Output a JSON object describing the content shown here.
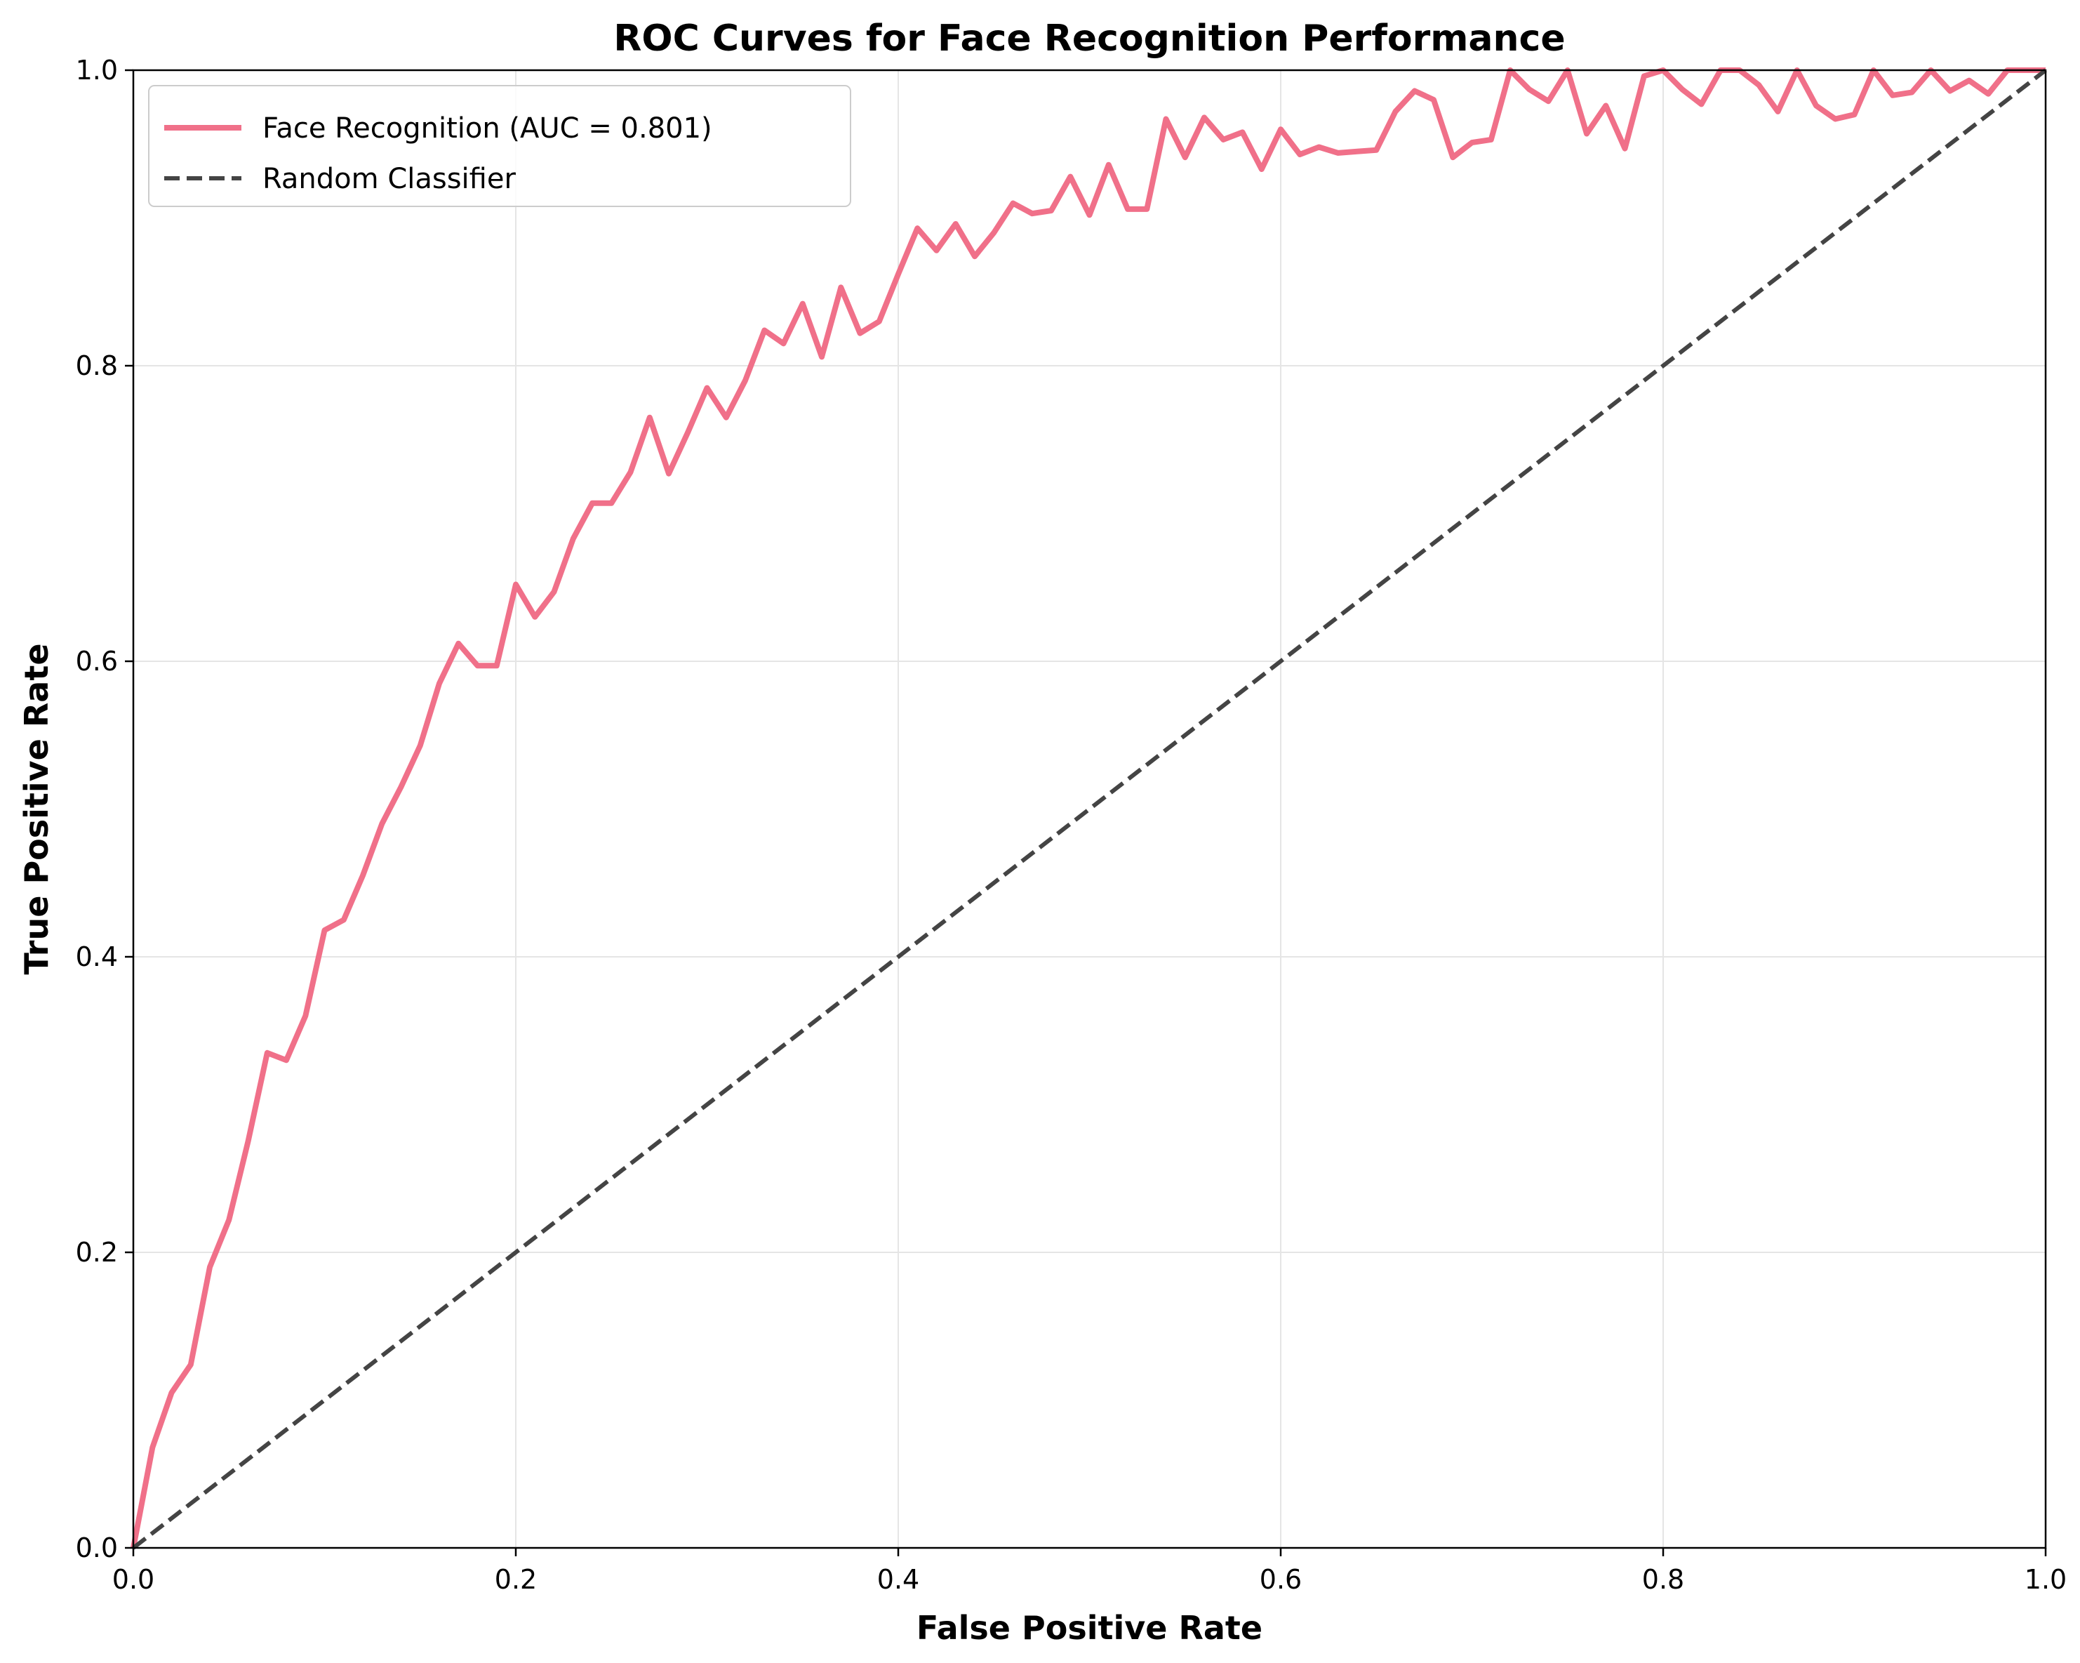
{
  "chart_data": {
    "type": "line",
    "title": "ROC Curves for Face Recognition Performance",
    "xlabel": "False Positive Rate",
    "ylabel": "True Positive Rate",
    "xlim": [
      0,
      1
    ],
    "ylim": [
      0,
      1
    ],
    "grid": true,
    "legend_position": "top-left",
    "x_ticks": [
      "0.0",
      "0.2",
      "0.4",
      "0.6",
      "0.8",
      "1.0"
    ],
    "y_ticks": [
      "0.0",
      "0.2",
      "0.4",
      "0.6",
      "0.8",
      "1.0"
    ],
    "colors": {
      "roc": "#f07089",
      "random": "#444444",
      "grid": "#e5e5e5"
    },
    "series": [
      {
        "name": "Face Recognition (AUC = 0.801)",
        "style": "solid",
        "x": [
          0.0,
          0.01,
          0.02,
          0.03,
          0.04,
          0.05,
          0.06,
          0.07,
          0.08,
          0.09,
          0.1,
          0.11,
          0.12,
          0.13,
          0.14,
          0.15,
          0.16,
          0.17,
          0.18,
          0.19,
          0.2,
          0.21,
          0.22,
          0.23,
          0.24,
          0.25,
          0.26,
          0.27,
          0.28,
          0.29,
          0.3,
          0.31,
          0.32,
          0.33,
          0.34,
          0.35,
          0.36,
          0.37,
          0.38,
          0.39,
          0.4,
          0.41,
          0.42,
          0.43,
          0.44,
          0.45,
          0.46,
          0.47,
          0.48,
          0.49,
          0.5,
          0.51,
          0.52,
          0.53,
          0.54,
          0.55,
          0.56,
          0.57,
          0.58,
          0.59,
          0.6,
          0.61,
          0.62,
          0.63,
          0.64,
          0.65,
          0.66,
          0.67,
          0.68,
          0.69,
          0.7,
          0.71,
          0.72,
          0.73,
          0.74,
          0.75,
          0.76,
          0.77,
          0.78,
          0.79,
          0.8,
          0.81,
          0.82,
          0.83,
          0.84,
          0.85,
          0.86,
          0.87,
          0.88,
          0.89,
          0.9,
          0.91,
          0.92,
          0.93,
          0.94,
          0.95,
          0.96,
          0.97,
          0.98,
          0.99,
          1.0
        ],
        "y": [
          0.0,
          0.068,
          0.105,
          0.124,
          0.19,
          0.222,
          0.275,
          0.335,
          0.33,
          0.36,
          0.418,
          0.425,
          0.455,
          0.49,
          0.515,
          0.543,
          0.585,
          0.612,
          0.597,
          0.597,
          0.652,
          0.63,
          0.647,
          0.683,
          0.707,
          0.707,
          0.728,
          0.765,
          0.727,
          0.755,
          0.785,
          0.765,
          0.79,
          0.824,
          0.815,
          0.842,
          0.806,
          0.853,
          0.822,
          0.83,
          0.862,
          0.893,
          0.878,
          0.896,
          0.874,
          0.89,
          0.91,
          0.903,
          0.905,
          0.928,
          0.902,
          0.936,
          0.906,
          0.906,
          0.967,
          0.941,
          0.968,
          0.953,
          0.958,
          0.933,
          0.96,
          0.943,
          0.948,
          0.944,
          0.945,
          0.946,
          0.972,
          0.986,
          0.98,
          0.941,
          0.951,
          0.953,
          1.0,
          0.987,
          0.979,
          1.0,
          0.957,
          0.976,
          0.947,
          0.996,
          1.0,
          0.987,
          0.977,
          1.0,
          1.0,
          0.99,
          0.972,
          1.0,
          0.976,
          0.967,
          0.97,
          1.0,
          0.983,
          0.985,
          1.0,
          0.986,
          0.993,
          0.984,
          1.0,
          1.0,
          1.0
        ]
      },
      {
        "name": "Random Classifier",
        "style": "dashed",
        "x": [
          0,
          1
        ],
        "y": [
          0,
          1
        ]
      }
    ]
  }
}
